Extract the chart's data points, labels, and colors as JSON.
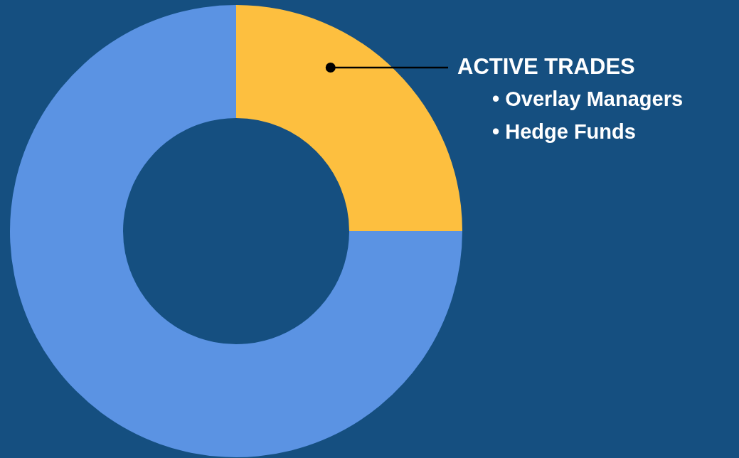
{
  "chart_data": {
    "type": "donut",
    "categories": [
      "ACTIVE TRADES",
      null
    ],
    "values": [
      25,
      75
    ],
    "colors": [
      "#fdbf3f",
      "#5b93e3"
    ],
    "annotations": [
      "• Overlay Managers",
      "• Hedge Funds"
    ],
    "legend": false
  }
}
